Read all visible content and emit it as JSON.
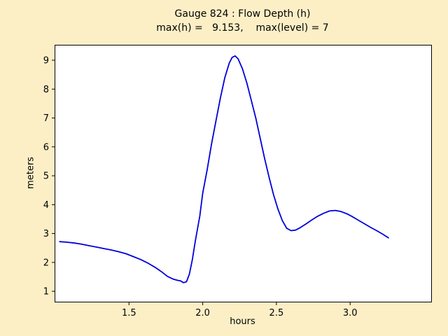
{
  "colors": {
    "figure_background": "#FCEFC6",
    "plot_background": "#FFFFFF",
    "axis_color": "#000000",
    "line_color": "#0000DD"
  },
  "chart_data": {
    "type": "line",
    "title": "Gauge 824 : Flow Depth (h)",
    "subtitle": "max(h) =   9.153,    max(level) = 7",
    "xlabel": "hours",
    "ylabel": "meters",
    "xlim": [
      1.0,
      3.55
    ],
    "ylim": [
      0.64,
      9.51
    ],
    "grid": false,
    "legend": "none",
    "xticks": [
      {
        "value": 1.5,
        "label": "1.5"
      },
      {
        "value": 2.0,
        "label": "2.0"
      },
      {
        "value": 2.5,
        "label": "2.5"
      },
      {
        "value": 3.0,
        "label": "3.0"
      }
    ],
    "yticks": [
      {
        "value": 1,
        "label": "1"
      },
      {
        "value": 2,
        "label": "2"
      },
      {
        "value": 3,
        "label": "3"
      },
      {
        "value": 4,
        "label": "4"
      },
      {
        "value": 5,
        "label": "5"
      },
      {
        "value": 6,
        "label": "6"
      },
      {
        "value": 7,
        "label": "7"
      },
      {
        "value": 8,
        "label": "8"
      },
      {
        "value": 9,
        "label": "9"
      }
    ],
    "series_name": "Flow Depth (h)",
    "max_h": 9.153,
    "max_level": 7,
    "x": [
      1.03,
      1.08,
      1.13,
      1.18,
      1.23,
      1.28,
      1.33,
      1.38,
      1.43,
      1.48,
      1.53,
      1.58,
      1.63,
      1.68,
      1.72,
      1.76,
      1.8,
      1.83,
      1.85,
      1.87,
      1.89,
      1.91,
      1.93,
      1.95,
      1.98,
      2.0,
      2.03,
      2.06,
      2.09,
      2.12,
      2.15,
      2.18,
      2.2,
      2.22,
      2.24,
      2.27,
      2.3,
      2.33,
      2.36,
      2.39,
      2.42,
      2.45,
      2.48,
      2.51,
      2.54,
      2.57,
      2.6,
      2.63,
      2.66,
      2.7,
      2.74,
      2.78,
      2.82,
      2.86,
      2.9,
      2.94,
      2.98,
      3.02,
      3.06,
      3.1,
      3.14,
      3.18,
      3.22,
      3.26
    ],
    "y": [
      2.72,
      2.7,
      2.67,
      2.63,
      2.58,
      2.53,
      2.48,
      2.43,
      2.37,
      2.3,
      2.2,
      2.1,
      1.97,
      1.82,
      1.68,
      1.52,
      1.42,
      1.38,
      1.36,
      1.3,
      1.33,
      1.6,
      2.1,
      2.75,
      3.6,
      4.4,
      5.2,
      6.1,
      6.9,
      7.7,
      8.4,
      8.9,
      9.1,
      9.15,
      9.05,
      8.7,
      8.2,
      7.6,
      7.0,
      6.3,
      5.6,
      4.95,
      4.35,
      3.85,
      3.45,
      3.18,
      3.1,
      3.12,
      3.2,
      3.33,
      3.47,
      3.6,
      3.7,
      3.78,
      3.8,
      3.76,
      3.68,
      3.57,
      3.45,
      3.33,
      3.21,
      3.1,
      2.98,
      2.85
    ]
  }
}
